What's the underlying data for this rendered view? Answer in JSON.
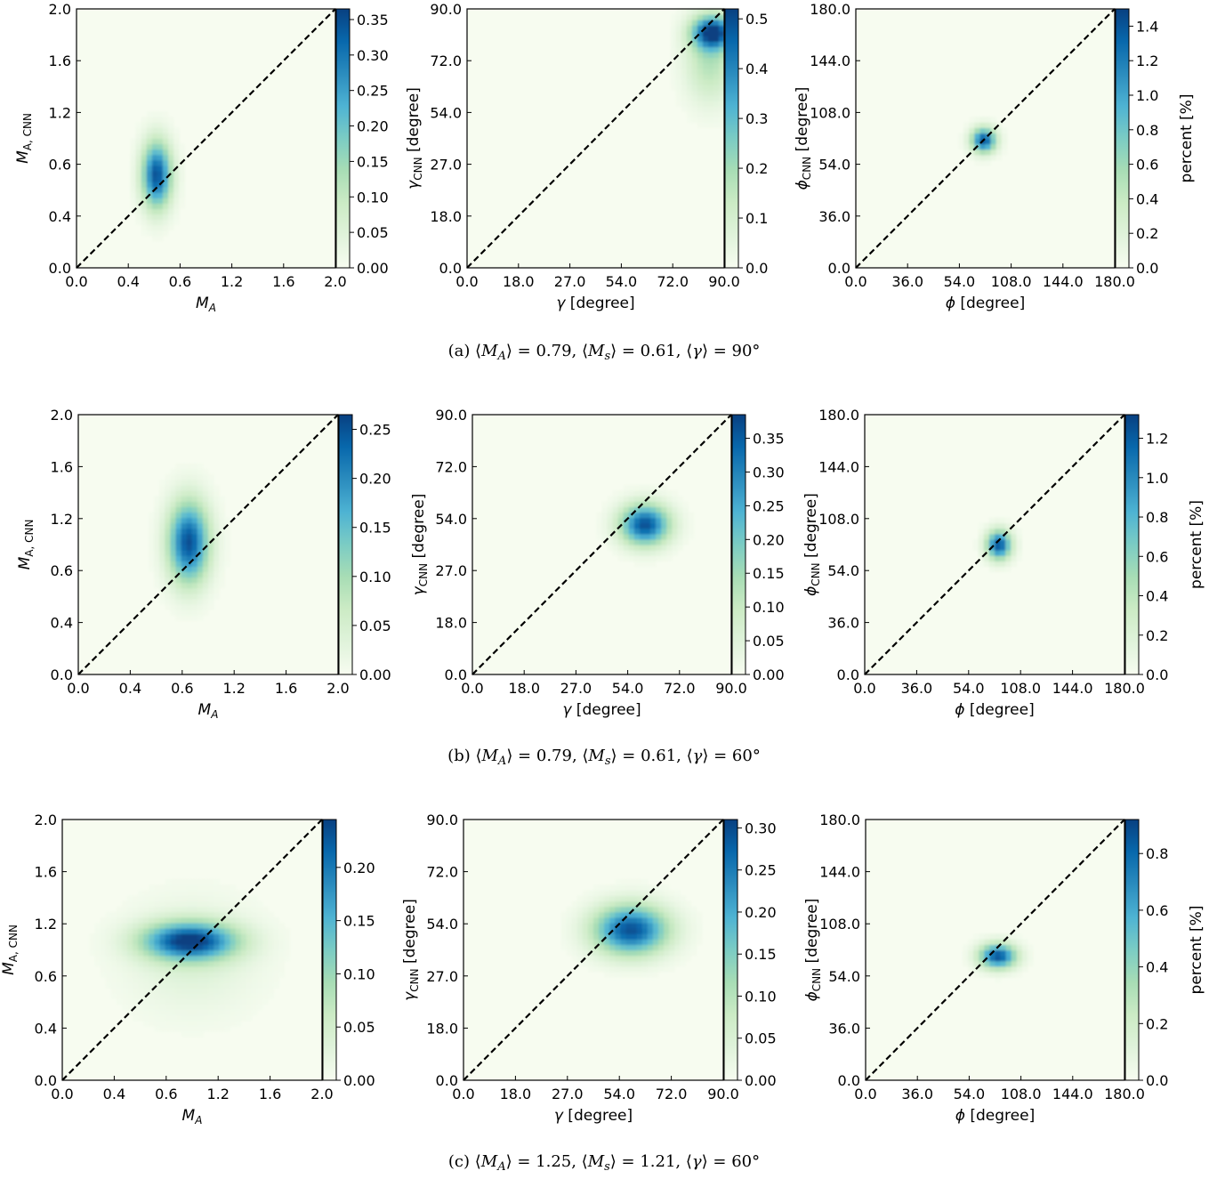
{
  "figure": {
    "rows": [
      {
        "caption": "(a) ⟨M_A⟩ = 0.79, ⟨M_s⟩ = 0.61, ⟨γ⟩ = 90°",
        "caption_parts": {
          "label": "(a)",
          "MA": "0.79",
          "Ms": "0.61",
          "gamma": "90°"
        }
      },
      {
        "caption": "(b) ⟨M_A⟩ = 0.79, ⟨M_s⟩ = 0.61, ⟨γ⟩ = 60°",
        "caption_parts": {
          "label": "(b)",
          "MA": "0.79",
          "Ms": "0.61",
          "gamma": "60°"
        }
      },
      {
        "caption": "(c) ⟨M_A⟩ = 1.25, ⟨M_s⟩ = 1.21, ⟨γ⟩ = 60°",
        "caption_parts": {
          "label": "(c)",
          "MA": "1.25",
          "Ms": "1.21",
          "gamma": "60°"
        }
      }
    ]
  },
  "chart_data": [
    {
      "type": "heatmap",
      "row": 0,
      "col": 0,
      "xlabel": "M_A",
      "ylabel": "M_A,CNN",
      "xlim": [
        0,
        2
      ],
      "ylim": [
        0,
        2
      ],
      "tick_labels": [
        "0.0",
        "0.4",
        "0.6",
        "1.2",
        "1.6",
        "2.0"
      ],
      "colorbar": {
        "ticks": [
          "0.00",
          "0.05",
          "0.10",
          "0.15",
          "0.20",
          "0.25",
          "0.30",
          "0.35"
        ],
        "max": 0.365,
        "label": ""
      },
      "diagonal": true,
      "blobs": [
        {
          "x": 0.62,
          "y": 0.72,
          "sx": 0.08,
          "sy": 0.18,
          "amp": 1.0
        }
      ]
    },
    {
      "type": "heatmap",
      "row": 0,
      "col": 1,
      "xlabel": "γ [degree]",
      "ylabel": "γ_CNN [degree]",
      "xlim": [
        0,
        90
      ],
      "ylim": [
        0,
        90
      ],
      "tick_labels": [
        "0.0",
        "18.0",
        "27.0",
        "54.0",
        "72.0",
        "90.0"
      ],
      "colorbar": {
        "ticks": [
          "0.0",
          "0.1",
          "0.2",
          "0.3",
          "0.4",
          "0.5"
        ],
        "max": 0.52,
        "label": ""
      },
      "diagonal": true,
      "blobs": [
        {
          "x": 86,
          "y": 82,
          "sx": 5,
          "sy": 4,
          "amp": 1.0
        },
        {
          "x": 85,
          "y": 72,
          "sx": 6,
          "sy": 10,
          "amp": 0.35
        }
      ]
    },
    {
      "type": "heatmap",
      "row": 0,
      "col": 2,
      "xlabel": "ϕ [degree]",
      "ylabel": "ϕ_CNN [degree]",
      "xlim": [
        0,
        180
      ],
      "ylim": [
        0,
        180
      ],
      "tick_labels": [
        "0.0",
        "36.0",
        "54.0",
        "108.0",
        "144.0",
        "180.0"
      ],
      "colorbar": {
        "ticks": [
          "0.0",
          "0.2",
          "0.4",
          "0.6",
          "0.8",
          "1.0",
          "1.2",
          "1.4"
        ],
        "max": 1.5,
        "label": "percent [%]"
      },
      "diagonal": true,
      "blobs": [
        {
          "x": 89,
          "y": 89,
          "sx": 6,
          "sy": 6,
          "amp": 1.0
        }
      ]
    },
    {
      "type": "heatmap",
      "row": 1,
      "col": 0,
      "xlabel": "M_A",
      "ylabel": "M_A,CNN",
      "xlim": [
        0,
        2
      ],
      "ylim": [
        0,
        2
      ],
      "tick_labels": [
        "0.0",
        "0.4",
        "0.6",
        "1.2",
        "1.6",
        "2.0"
      ],
      "colorbar": {
        "ticks": [
          "0.00",
          "0.05",
          "0.10",
          "0.15",
          "0.20",
          "0.25"
        ],
        "max": 0.265,
        "label": ""
      },
      "diagonal": true,
      "blobs": [
        {
          "x": 0.85,
          "y": 1.02,
          "sx": 0.11,
          "sy": 0.22,
          "amp": 1.0
        }
      ]
    },
    {
      "type": "heatmap",
      "row": 1,
      "col": 1,
      "xlabel": "γ [degree]",
      "ylabel": "γ_CNN [degree]",
      "xlim": [
        0,
        90
      ],
      "ylim": [
        0,
        90
      ],
      "tick_labels": [
        "0.0",
        "18.0",
        "27.0",
        "54.0",
        "72.0",
        "90.0"
      ],
      "colorbar": {
        "ticks": [
          "0.00",
          "0.05",
          "0.10",
          "0.15",
          "0.20",
          "0.25",
          "0.30",
          "0.35"
        ],
        "max": 0.385,
        "label": ""
      },
      "diagonal": true,
      "blobs": [
        {
          "x": 60,
          "y": 52,
          "sx": 6,
          "sy": 5,
          "amp": 1.0
        }
      ]
    },
    {
      "type": "heatmap",
      "row": 1,
      "col": 2,
      "xlabel": "ϕ [degree]",
      "ylabel": "ϕ_CNN [degree]",
      "xlim": [
        0,
        180
      ],
      "ylim": [
        0,
        180
      ],
      "tick_labels": [
        "0.0",
        "36.0",
        "54.0",
        "108.0",
        "144.0",
        "180.0"
      ],
      "colorbar": {
        "ticks": [
          "0.0",
          "0.2",
          "0.4",
          "0.6",
          "0.8",
          "1.0",
          "1.2"
        ],
        "max": 1.32,
        "label": "percent [%]"
      },
      "diagonal": true,
      "blobs": [
        {
          "x": 93,
          "y": 90,
          "sx": 6,
          "sy": 7,
          "amp": 1.0
        }
      ]
    },
    {
      "type": "heatmap",
      "row": 2,
      "col": 0,
      "xlabel": "M_A",
      "ylabel": "M_A,CNN",
      "xlim": [
        0,
        2
      ],
      "ylim": [
        0,
        2
      ],
      "tick_labels": [
        "0.0",
        "0.4",
        "0.6",
        "1.2",
        "1.6",
        "2.0"
      ],
      "colorbar": {
        "ticks": [
          "0.00",
          "0.05",
          "0.10",
          "0.15",
          "0.20"
        ],
        "max": 0.245,
        "label": ""
      },
      "diagonal": true,
      "blobs": [
        {
          "x": 0.98,
          "y": 1.07,
          "sx": 0.25,
          "sy": 0.1,
          "amp": 1.0
        },
        {
          "x": 1.0,
          "y": 0.95,
          "sx": 0.35,
          "sy": 0.3,
          "amp": 0.15
        }
      ]
    },
    {
      "type": "heatmap",
      "row": 2,
      "col": 1,
      "xlabel": "γ [degree]",
      "ylabel": "γ_CNN [degree]",
      "xlim": [
        0,
        90
      ],
      "ylim": [
        0,
        90
      ],
      "tick_labels": [
        "0.0",
        "18.0",
        "27.0",
        "54.0",
        "72.0",
        "90.0"
      ],
      "colorbar": {
        "ticks": [
          "0.00",
          "0.05",
          "0.10",
          "0.15",
          "0.20",
          "0.25",
          "0.30"
        ],
        "max": 0.31,
        "label": ""
      },
      "diagonal": true,
      "blobs": [
        {
          "x": 58,
          "y": 52,
          "sx": 9,
          "sy": 6,
          "amp": 1.0
        }
      ]
    },
    {
      "type": "heatmap",
      "row": 2,
      "col": 2,
      "xlabel": "ϕ [degree]",
      "ylabel": "ϕ_CNN [degree]",
      "xlim": [
        0,
        180
      ],
      "ylim": [
        0,
        180
      ],
      "tick_labels": [
        "0.0",
        "36.0",
        "54.0",
        "108.0",
        "144.0",
        "180.0"
      ],
      "colorbar": {
        "ticks": [
          "0.0",
          "0.2",
          "0.4",
          "0.6",
          "0.8"
        ],
        "max": 0.92,
        "label": "percent [%]"
      },
      "diagonal": true,
      "blobs": [
        {
          "x": 92,
          "y": 86,
          "sx": 9,
          "sy": 6,
          "amp": 1.0
        }
      ]
    }
  ]
}
